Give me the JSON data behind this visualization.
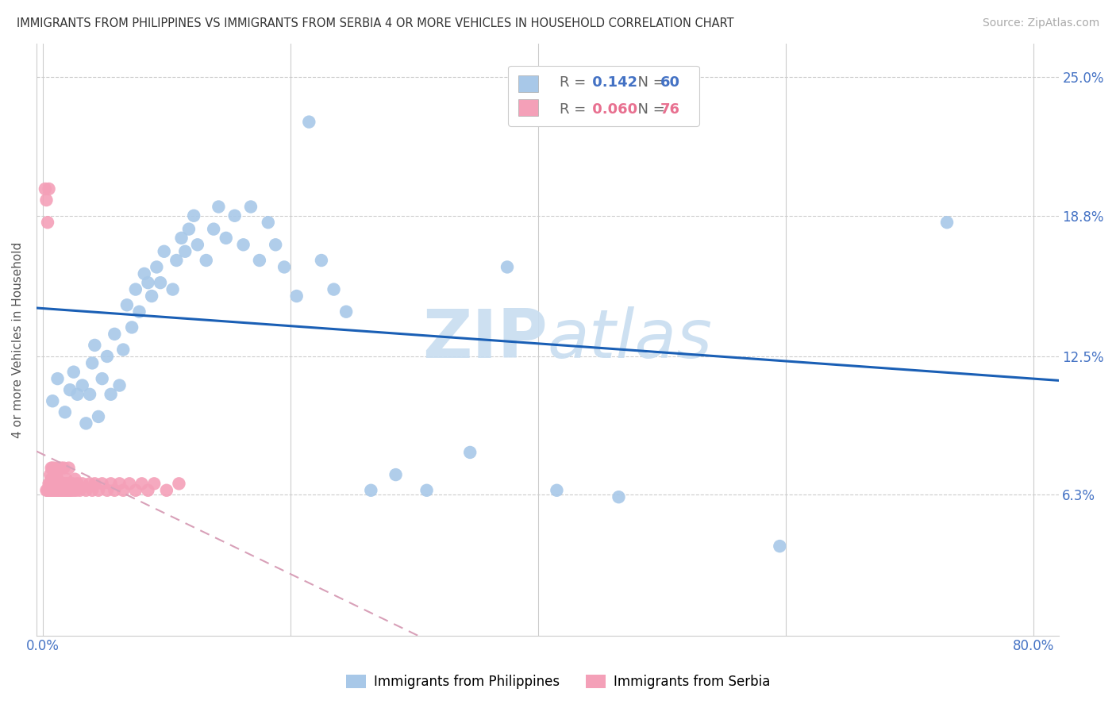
{
  "title": "IMMIGRANTS FROM PHILIPPINES VS IMMIGRANTS FROM SERBIA 4 OR MORE VEHICLES IN HOUSEHOLD CORRELATION CHART",
  "source": "Source: ZipAtlas.com",
  "ylabel": "4 or more Vehicles in Household",
  "y_tick_labels": [
    "6.3%",
    "12.5%",
    "18.8%",
    "25.0%"
  ],
  "y_ticks": [
    0.063,
    0.125,
    0.188,
    0.25
  ],
  "xlim": [
    -0.005,
    0.82
  ],
  "ylim": [
    0.0,
    0.265
  ],
  "r_philippines": 0.142,
  "n_philippines": 60,
  "r_serbia": 0.06,
  "n_serbia": 76,
  "color_philippines": "#a8c8e8",
  "color_serbia": "#f4a0b8",
  "trendline_philippines": "#1a5fb5",
  "trendline_serbia": "#d8a0b8",
  "watermark_color": "#c8ddf0",
  "background_color": "#ffffff",
  "phil_x": [
    0.008,
    0.012,
    0.018,
    0.022,
    0.025,
    0.028,
    0.032,
    0.035,
    0.038,
    0.04,
    0.042,
    0.045,
    0.048,
    0.052,
    0.055,
    0.058,
    0.062,
    0.065,
    0.068,
    0.072,
    0.075,
    0.078,
    0.082,
    0.085,
    0.088,
    0.092,
    0.095,
    0.098,
    0.105,
    0.108,
    0.112,
    0.115,
    0.118,
    0.122,
    0.125,
    0.132,
    0.138,
    0.142,
    0.148,
    0.155,
    0.162,
    0.168,
    0.175,
    0.182,
    0.188,
    0.195,
    0.205,
    0.215,
    0.225,
    0.235,
    0.245,
    0.265,
    0.285,
    0.31,
    0.345,
    0.375,
    0.415,
    0.465,
    0.595,
    0.73
  ],
  "phil_y": [
    0.105,
    0.115,
    0.1,
    0.11,
    0.118,
    0.108,
    0.112,
    0.095,
    0.108,
    0.122,
    0.13,
    0.098,
    0.115,
    0.125,
    0.108,
    0.135,
    0.112,
    0.128,
    0.148,
    0.138,
    0.155,
    0.145,
    0.162,
    0.158,
    0.152,
    0.165,
    0.158,
    0.172,
    0.155,
    0.168,
    0.178,
    0.172,
    0.182,
    0.188,
    0.175,
    0.168,
    0.182,
    0.192,
    0.178,
    0.188,
    0.175,
    0.192,
    0.168,
    0.185,
    0.175,
    0.165,
    0.152,
    0.23,
    0.168,
    0.155,
    0.145,
    0.065,
    0.072,
    0.065,
    0.082,
    0.165,
    0.065,
    0.062,
    0.04,
    0.185
  ],
  "serb_x": [
    0.002,
    0.003,
    0.003,
    0.004,
    0.004,
    0.005,
    0.005,
    0.005,
    0.006,
    0.006,
    0.006,
    0.007,
    0.007,
    0.007,
    0.008,
    0.008,
    0.008,
    0.009,
    0.009,
    0.009,
    0.01,
    0.01,
    0.01,
    0.011,
    0.011,
    0.011,
    0.012,
    0.012,
    0.013,
    0.013,
    0.013,
    0.014,
    0.014,
    0.015,
    0.015,
    0.015,
    0.016,
    0.016,
    0.017,
    0.017,
    0.018,
    0.018,
    0.019,
    0.019,
    0.02,
    0.02,
    0.021,
    0.021,
    0.022,
    0.022,
    0.023,
    0.024,
    0.025,
    0.026,
    0.027,
    0.028,
    0.03,
    0.032,
    0.035,
    0.038,
    0.04,
    0.042,
    0.045,
    0.048,
    0.052,
    0.055,
    0.058,
    0.062,
    0.065,
    0.07,
    0.075,
    0.08,
    0.085,
    0.09,
    0.1,
    0.11
  ],
  "serb_y": [
    0.2,
    0.195,
    0.065,
    0.185,
    0.065,
    0.2,
    0.065,
    0.068,
    0.065,
    0.068,
    0.072,
    0.065,
    0.07,
    0.075,
    0.065,
    0.068,
    0.075,
    0.065,
    0.068,
    0.072,
    0.065,
    0.068,
    0.075,
    0.065,
    0.068,
    0.072,
    0.065,
    0.07,
    0.065,
    0.068,
    0.075,
    0.065,
    0.068,
    0.065,
    0.068,
    0.075,
    0.065,
    0.068,
    0.065,
    0.075,
    0.065,
    0.068,
    0.065,
    0.07,
    0.065,
    0.068,
    0.065,
    0.075,
    0.065,
    0.068,
    0.065,
    0.068,
    0.065,
    0.07,
    0.065,
    0.068,
    0.065,
    0.068,
    0.065,
    0.068,
    0.065,
    0.068,
    0.065,
    0.068,
    0.065,
    0.068,
    0.065,
    0.068,
    0.065,
    0.068,
    0.065,
    0.068,
    0.065,
    0.068,
    0.065,
    0.068
  ]
}
